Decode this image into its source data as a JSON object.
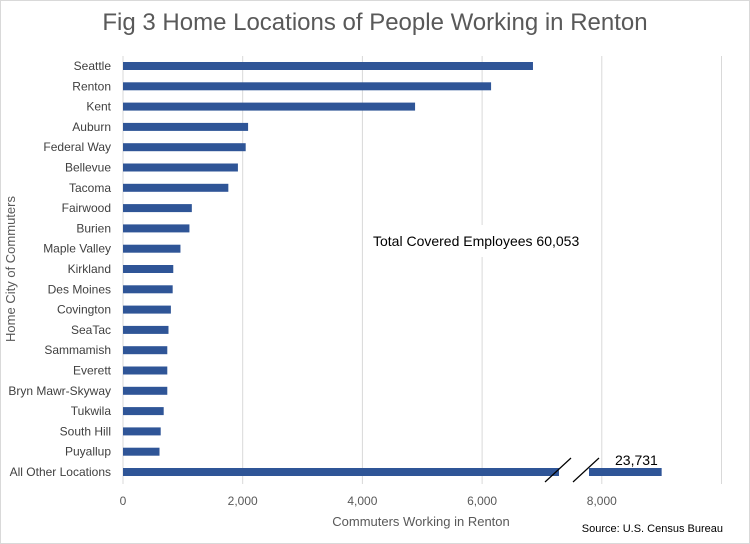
{
  "chart_data": {
    "type": "bar",
    "orientation": "horizontal",
    "title": "Fig 3 Home Locations of People Working in Renton",
    "xlabel": "Commuters Working in Renton",
    "ylabel": "Home City of Commuters",
    "xlim": [
      0,
      10000
    ],
    "xticks": [
      0,
      2000,
      4000,
      6000,
      8000
    ],
    "xtick_labels": [
      "0",
      "2,000",
      "4,000",
      "6,000",
      "8,000"
    ],
    "grid": "vertical",
    "bar_color": "#2f5597",
    "axis_break": true,
    "categories": [
      "Seattle",
      "Renton",
      "Kent",
      "Auburn",
      "Federal Way",
      "Bellevue",
      "Tacoma",
      "Fairwood",
      "Burien",
      "Maple Valley",
      "Kirkland",
      "Des Moines",
      "Covington",
      "SeaTac",
      "Sammamish",
      "Everett",
      "Bryn Mawr-Skyway",
      "Tukwila",
      "South Hill",
      "Puyallup",
      "All Other Locations"
    ],
    "values": [
      6850,
      6150,
      4880,
      2090,
      2050,
      1920,
      1760,
      1150,
      1110,
      960,
      840,
      830,
      800,
      760,
      740,
      740,
      740,
      680,
      630,
      610,
      23731
    ],
    "data_labels": {
      "All Other Locations": "23,731"
    },
    "annotation": "Total Covered Employees 60,053",
    "source": "Source: U.S. Census Bureau"
  }
}
